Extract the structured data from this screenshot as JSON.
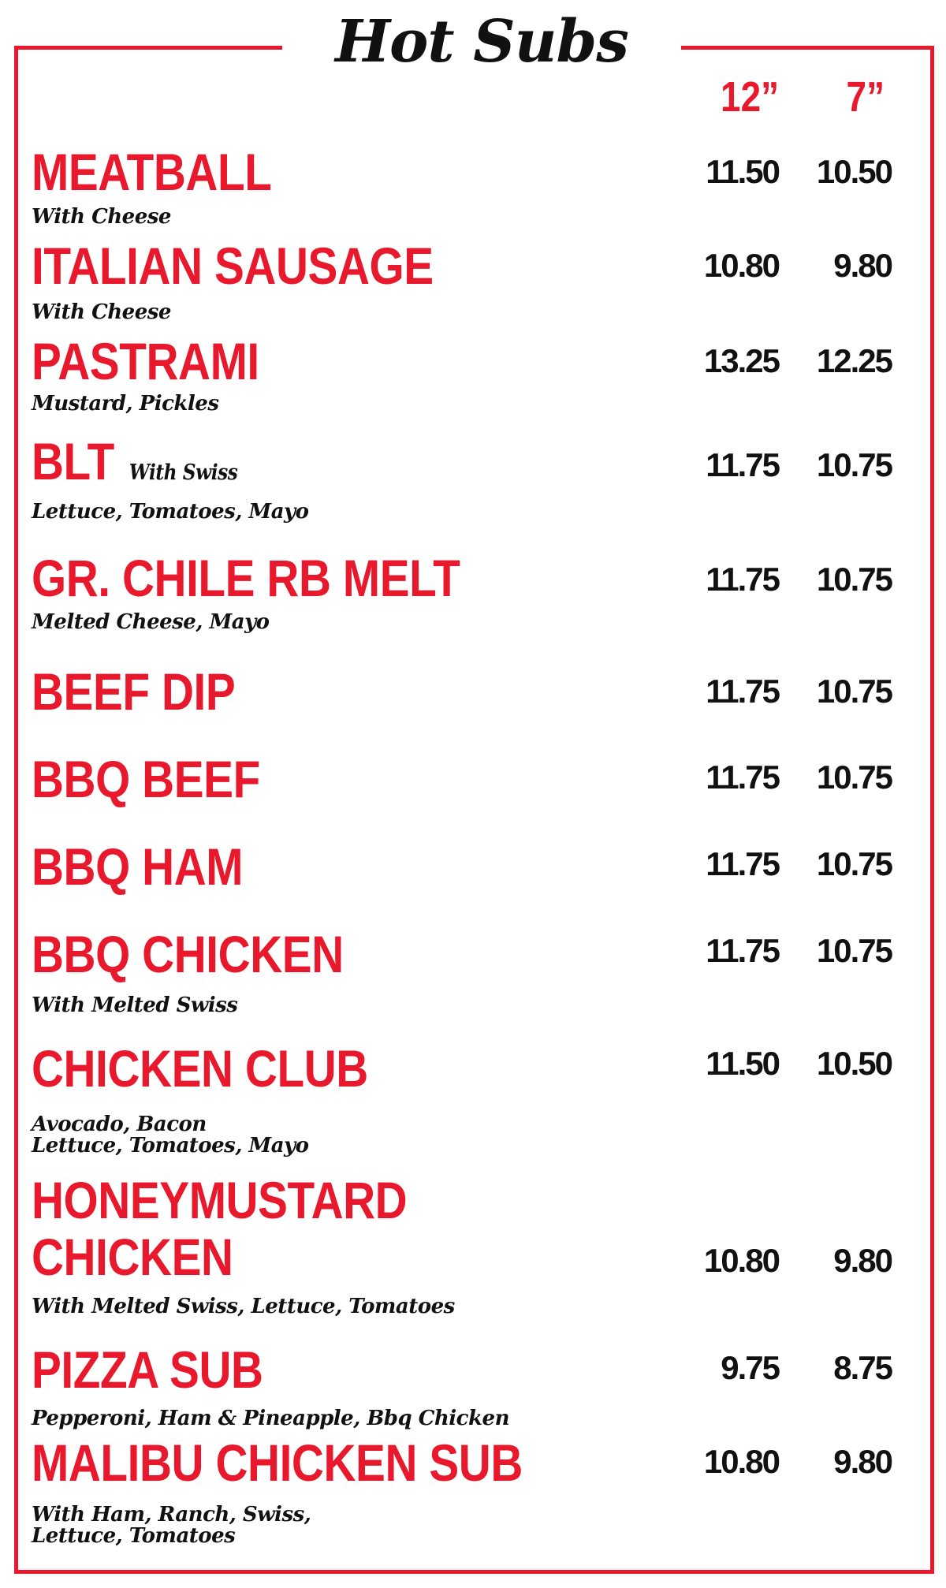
{
  "title": "Hot Subs",
  "sizes": [
    "12”",
    "7”"
  ],
  "colors": {
    "accent": "#e8192c",
    "text": "#111111"
  },
  "items": [
    {
      "name": "MEATBALL",
      "description": [
        "With Cheese"
      ],
      "price_12": "11.50",
      "price_7": "10.50"
    },
    {
      "name": "ITALIAN SAUSAGE",
      "description": [
        "With Cheese"
      ],
      "price_12": "10.80",
      "price_7": "9.80"
    },
    {
      "name": "PASTRAMI",
      "description": [
        "Mustard, Pickles"
      ],
      "price_12": "13.25",
      "price_7": "12.25"
    },
    {
      "name": "BLT",
      "note": "With Swiss",
      "description": [
        "Lettuce, Tomatoes, Mayo"
      ],
      "price_12": "11.75",
      "price_7": "10.75"
    },
    {
      "name": "GR. CHILE RB MELT",
      "description": [
        "Melted Cheese, Mayo"
      ],
      "price_12": "11.75",
      "price_7": "10.75"
    },
    {
      "name": "BEEF DIP",
      "description": [],
      "price_12": "11.75",
      "price_7": "10.75"
    },
    {
      "name": "BBQ BEEF",
      "description": [],
      "price_12": "11.75",
      "price_7": "10.75"
    },
    {
      "name": "BBQ HAM",
      "description": [],
      "price_12": "11.75",
      "price_7": "10.75"
    },
    {
      "name": "BBQ CHICKEN",
      "description": [
        "With Melted Swiss"
      ],
      "price_12": "11.75",
      "price_7": "10.75"
    },
    {
      "name": "CHICKEN CLUB",
      "description": [
        "Avocado, Bacon",
        "Lettuce, Tomatoes, Mayo"
      ],
      "price_12": "11.50",
      "price_7": "10.50"
    },
    {
      "name": "HONEYMUSTARD\nCHICKEN",
      "description": [
        "With Melted Swiss, Lettuce, Tomatoes"
      ],
      "price_12": "10.80",
      "price_7": "9.80"
    },
    {
      "name": "PIZZA SUB",
      "description": [
        "Pepperoni, Ham & Pineapple, Bbq Chicken"
      ],
      "price_12": "9.75",
      "price_7": "8.75"
    },
    {
      "name": "MALIBU CHICKEN SUB",
      "description": [
        "With Ham, Ranch, Swiss,",
        "Lettuce, Tomatoes"
      ],
      "price_12": "10.80",
      "price_7": "9.80"
    }
  ]
}
